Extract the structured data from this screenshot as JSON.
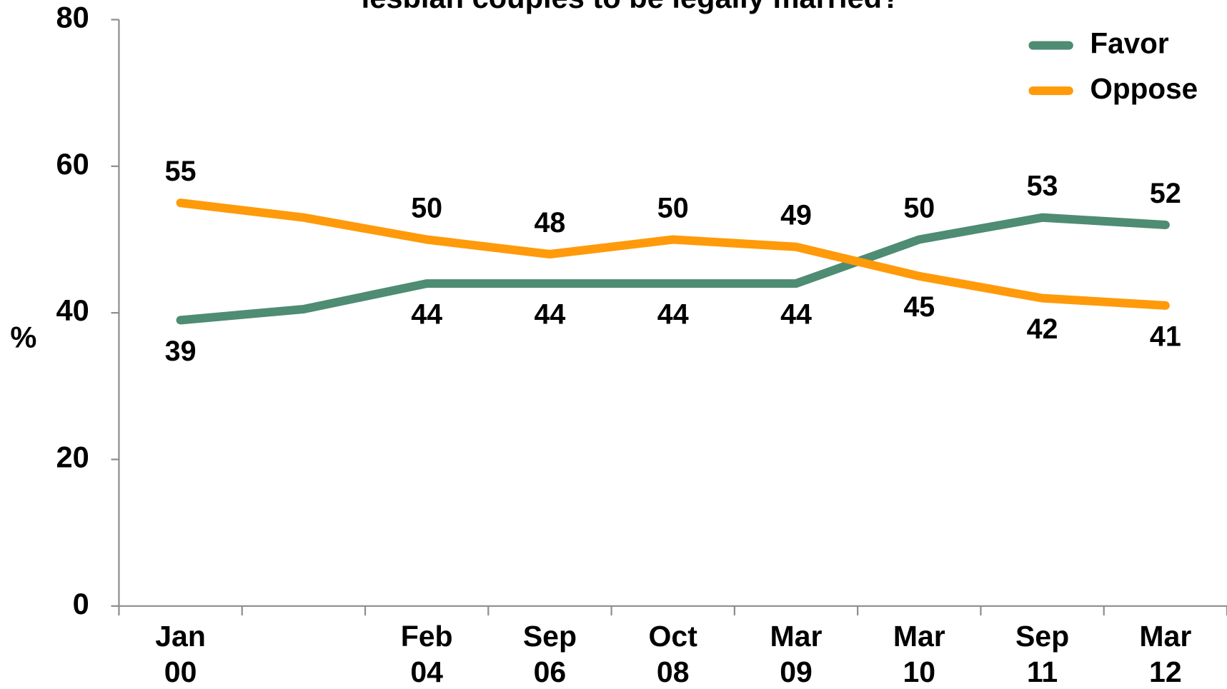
{
  "chart_data": {
    "type": "line",
    "title": "lesbian couples to be legally married?",
    "y_label": "%",
    "categories": [
      "Jan\n00",
      null,
      "Feb\n04",
      "Sep\n06",
      "Oct\n08",
      "Mar\n09",
      "Mar\n10",
      "Sep\n11",
      "Mar\n12"
    ],
    "series": [
      {
        "name": "Favor",
        "color": "#4e8c73",
        "values": [
          39,
          40.5,
          44,
          44,
          44,
          44,
          50,
          53,
          52
        ],
        "value_labels": [
          "39",
          null,
          "44",
          "44",
          "44",
          "44",
          "50",
          "53",
          "52"
        ]
      },
      {
        "name": "Oppose",
        "color": "#ff9a0a",
        "values": [
          55,
          53,
          50,
          48,
          50,
          49,
          45,
          42,
          41
        ],
        "value_labels": [
          "55",
          null,
          "50",
          "48",
          "50",
          "49",
          "45",
          "42",
          "41"
        ]
      }
    ],
    "ylim": [
      0,
      80
    ],
    "yticks": [
      0,
      20,
      40,
      60,
      80
    ],
    "grid": false,
    "legend": "top-right"
  }
}
